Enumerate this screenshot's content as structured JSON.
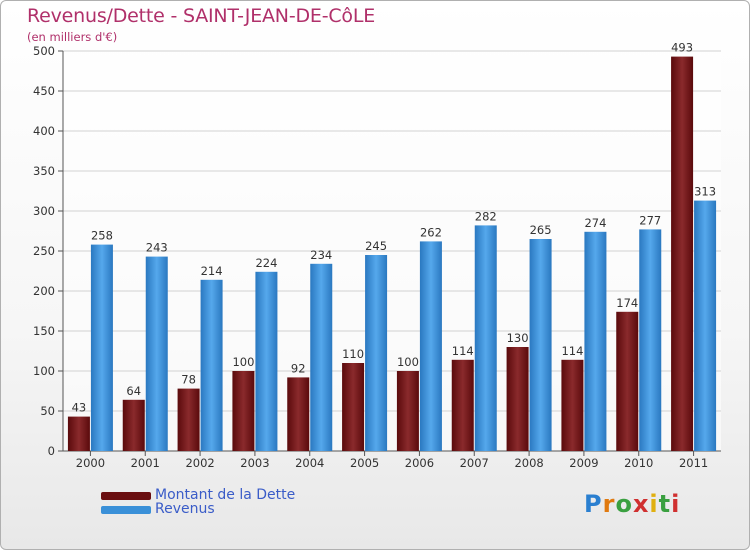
{
  "chart_data": {
    "type": "bar",
    "title": "Revenus/Dette - SAINT-JEAN-DE-CôLE",
    "subtitle": "(en milliers d'€)",
    "categories": [
      "2000",
      "2001",
      "2002",
      "2003",
      "2004",
      "2005",
      "2006",
      "2007",
      "2008",
      "2009",
      "2010",
      "2011"
    ],
    "series": [
      {
        "name": "Montant de la Dette",
        "color": "#7a1a1c",
        "values": [
          43,
          64,
          78,
          100,
          92,
          110,
          100,
          114,
          130,
          114,
          174,
          493
        ]
      },
      {
        "name": "Revenus",
        "color": "#3a90d8",
        "values": [
          258,
          243,
          214,
          224,
          234,
          245,
          262,
          282,
          265,
          274,
          277,
          313
        ]
      }
    ],
    "ylim": [
      0,
      500
    ],
    "yticks": [
      0,
      50,
      100,
      150,
      200,
      250,
      300,
      350,
      400,
      450,
      500
    ],
    "grid": true,
    "legend_position": "bottom-left"
  },
  "logo": {
    "text": "Proxiti"
  }
}
